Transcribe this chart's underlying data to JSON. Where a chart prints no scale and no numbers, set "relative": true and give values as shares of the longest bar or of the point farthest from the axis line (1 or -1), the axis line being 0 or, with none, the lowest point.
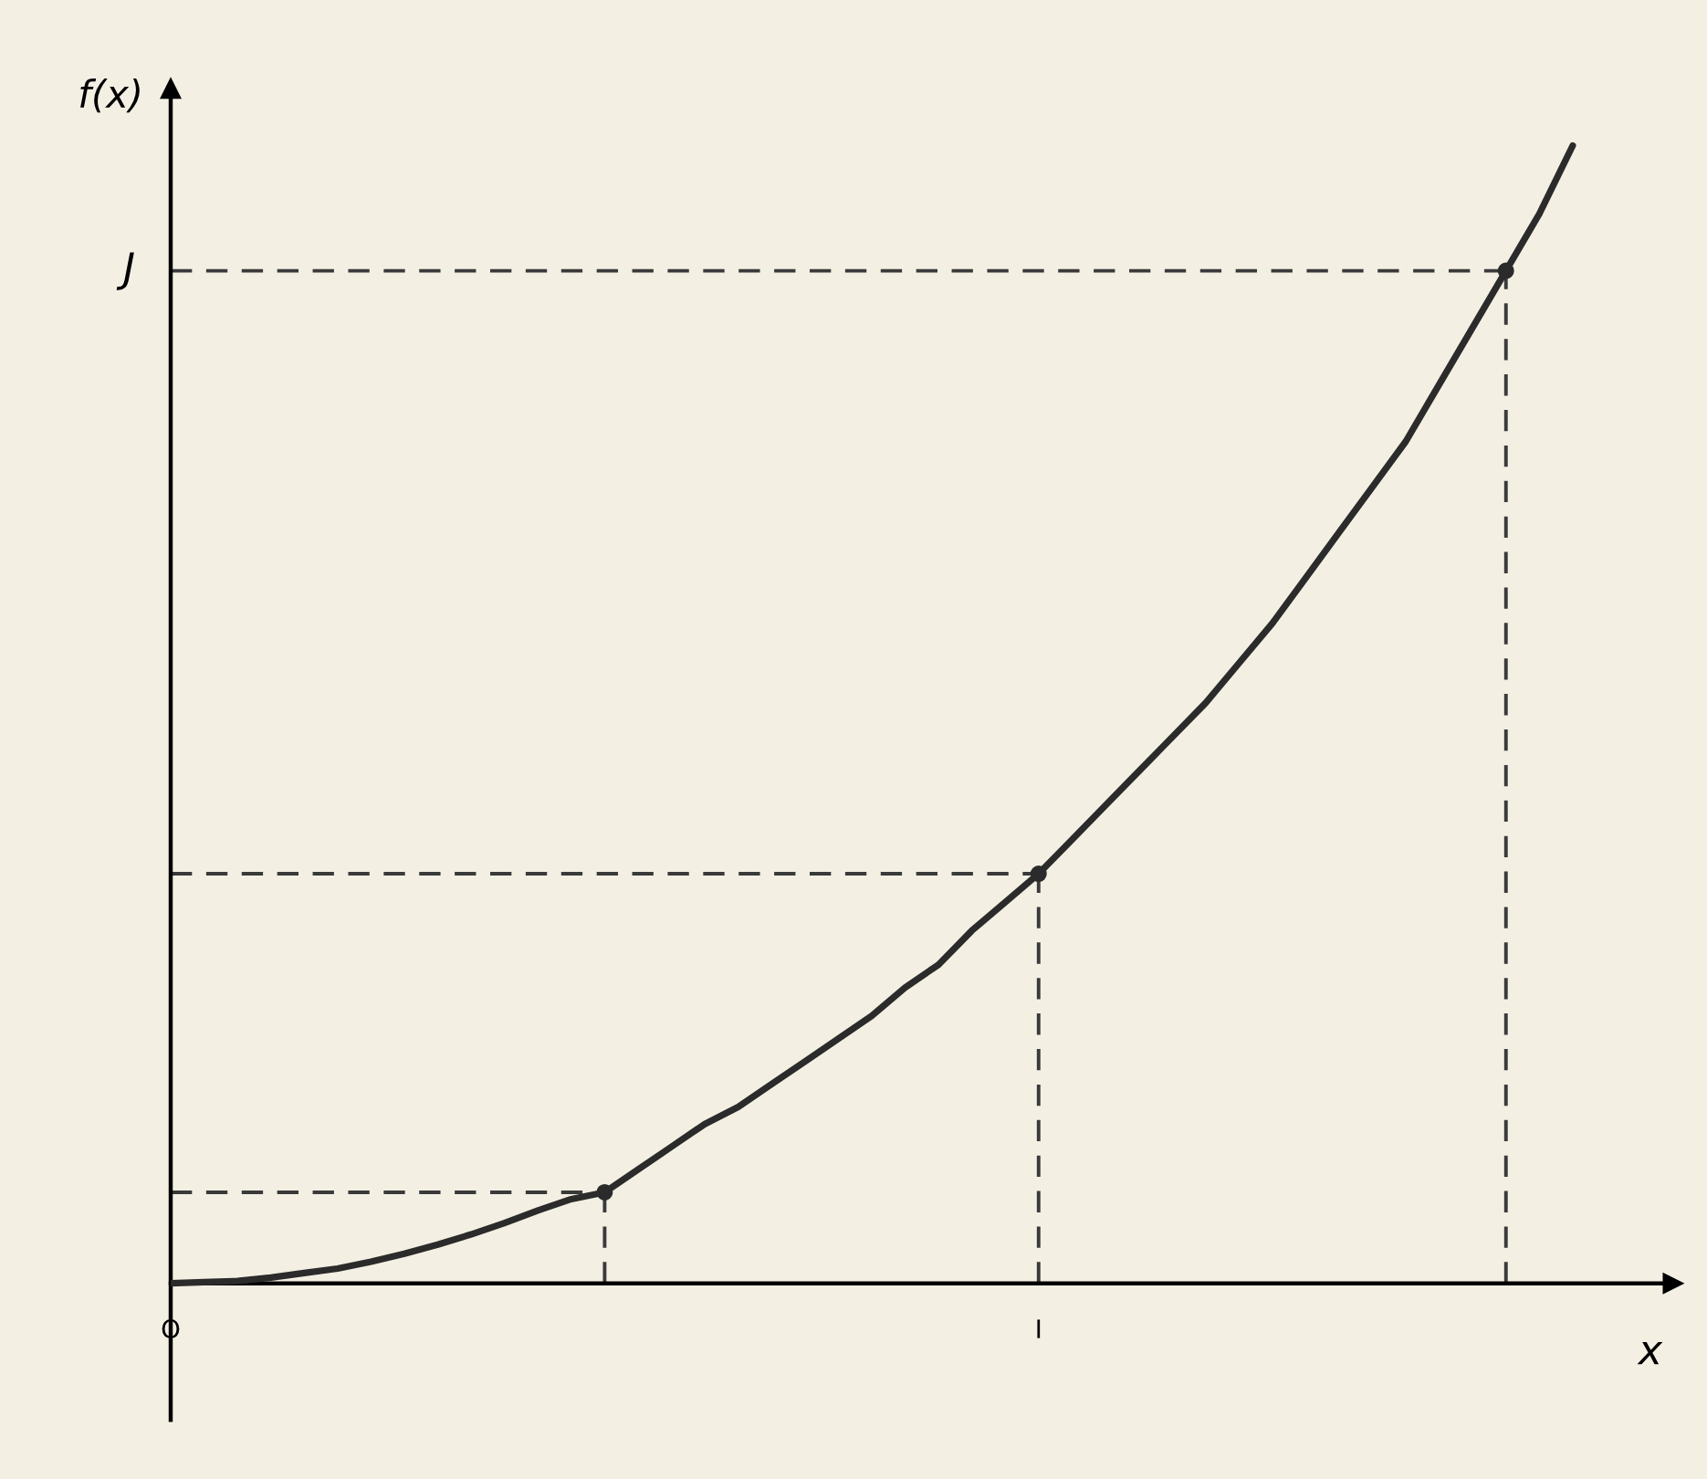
{
  "chart_data": {
    "type": "line",
    "relative": true,
    "xlabel": "x",
    "ylabel": "f(x)",
    "categories": [
      "O",
      null,
      null,
      null,
      null,
      null,
      null,
      null,
      null,
      null,
      null,
      null,
      null,
      null,
      null,
      null,
      null,
      null,
      null,
      null,
      null,
      null,
      null,
      null,
      null,
      null,
      "I",
      null,
      null,
      null,
      null,
      null,
      null,
      null,
      null,
      null,
      null,
      null,
      null,
      null,
      null,
      null,
      null,
      null,
      null,
      null
    ],
    "series": [
      {
        "color": "#2b2b2b",
        "line_style": "solid",
        "values": [
          0,
          0.001,
          0.002,
          0.005,
          0.009,
          0.013,
          0.019,
          0.026,
          0.034,
          0.043,
          0.053,
          0.064,
          0.074,
          0.08,
          0.1,
          0.12,
          0.14,
          0.155,
          0.175,
          0.195,
          0.215,
          0.235,
          0.26,
          0.28,
          0.31,
          0.335,
          0.36,
          0.39,
          0.42,
          0.45,
          0.48,
          0.51,
          0.545,
          0.58,
          0.62,
          0.66,
          0.7,
          0.74,
          0.79,
          0.84,
          0.89,
          0.94,
          1.0,
          null,
          null,
          null
        ]
      },
      {
        "type": "line",
        "color": "#3a3a3a",
        "line_style": "dashed",
        "values": [
          0.08,
          0.08,
          0.08,
          0.08,
          0.08,
          0.08,
          0.08,
          0.08,
          0.08,
          0.08,
          0.08,
          0.08,
          0.08,
          0.08,
          null,
          null,
          null,
          null,
          null,
          null,
          null,
          null,
          null,
          null,
          null,
          null,
          null,
          null,
          null,
          null,
          null,
          null,
          null,
          null,
          null,
          null,
          null,
          null,
          null,
          null,
          null,
          null,
          null,
          null,
          null,
          null
        ]
      },
      {
        "type": "line",
        "color": "#3a3a3a",
        "line_style": "dashed",
        "values": [
          0.36,
          0.36,
          0.36,
          0.36,
          0.36,
          0.36,
          0.36,
          0.36,
          0.36,
          0.36,
          0.36,
          0.36,
          0.36,
          0.36,
          0.36,
          0.36,
          0.36,
          0.36,
          0.36,
          0.36,
          0.36,
          0.36,
          0.36,
          0.36,
          0.36,
          0.36,
          0.36,
          null,
          null,
          null,
          null,
          null,
          null,
          null,
          null,
          null,
          null,
          null,
          null,
          null,
          null,
          null,
          null,
          null,
          null,
          null
        ]
      },
      {
        "type": "line",
        "color": "#3a3a3a",
        "line_style": "dashed",
        "values": [
          0.89,
          0.89,
          0.89,
          0.89,
          0.89,
          0.89,
          0.89,
          0.89,
          0.89,
          0.89,
          0.89,
          0.89,
          0.89,
          0.89,
          0.89,
          0.89,
          0.89,
          0.89,
          0.89,
          0.89,
          0.89,
          0.89,
          0.89,
          0.89,
          0.89,
          0.89,
          0.89,
          0.89,
          0.89,
          0.89,
          0.89,
          0.89,
          0.89,
          0.89,
          0.89,
          0.89,
          0.89,
          0.89,
          0.89,
          0.89,
          0.89,
          null,
          null,
          null,
          null,
          null
        ]
      },
      {
        "type": "lollipop",
        "color": "#2b2b2b",
        "marker": "circle",
        "line_style": "dashed",
        "values": [
          null,
          null,
          null,
          null,
          null,
          null,
          null,
          null,
          null,
          null,
          null,
          null,
          null,
          0.08,
          null,
          null,
          null,
          null,
          null,
          null,
          null,
          null,
          null,
          null,
          null,
          null,
          0.36,
          null,
          null,
          null,
          null,
          null,
          null,
          null,
          null,
          null,
          null,
          null,
          null,
          null,
          0.89,
          null,
          null,
          null,
          null,
          null
        ]
      }
    ],
    "annotations": [
      "J"
    ],
    "grid": false,
    "legend": false
  }
}
